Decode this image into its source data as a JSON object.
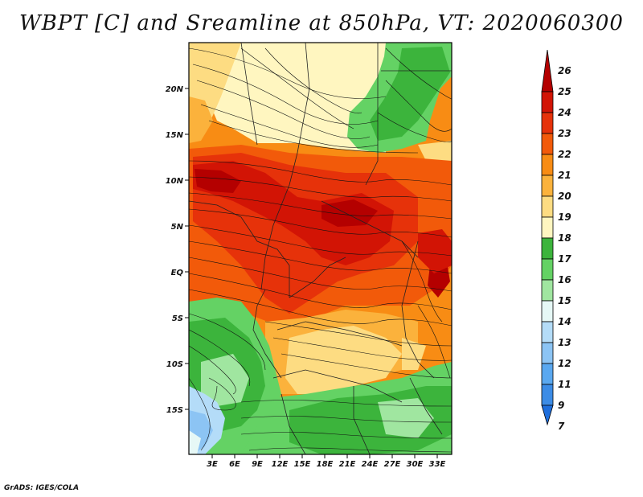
{
  "title": "WBPT [C] and Sreamline at 850hPa, VT: 2020060300",
  "credit": "GrADS: IGES/COLA",
  "map": {
    "lat_ticks": [
      "20N",
      "15N",
      "10N",
      "5N",
      "EQ",
      "5S",
      "10S",
      "15S"
    ],
    "lon_ticks": [
      "3E",
      "6E",
      "9E",
      "12E",
      "15E",
      "18E",
      "21E",
      "24E",
      "27E",
      "30E",
      "33E"
    ]
  },
  "colorbar": {
    "labels": [
      "26",
      "25",
      "24",
      "23",
      "22",
      "21",
      "20",
      "19",
      "18",
      "17",
      "16",
      "15",
      "14",
      "13",
      "12",
      "11",
      "9",
      "7"
    ],
    "colors": [
      "#b40000",
      "#d21405",
      "#e6320a",
      "#f25a0a",
      "#f88c14",
      "#fbb23c",
      "#fddc82",
      "#fff6c0",
      "#3cb43c",
      "#64d264",
      "#a0e6a0",
      "#e6f8f6",
      "#b4dcf8",
      "#8cc4f4",
      "#5aa8f0",
      "#3c8ce6",
      "#1e6edc"
    ]
  }
}
